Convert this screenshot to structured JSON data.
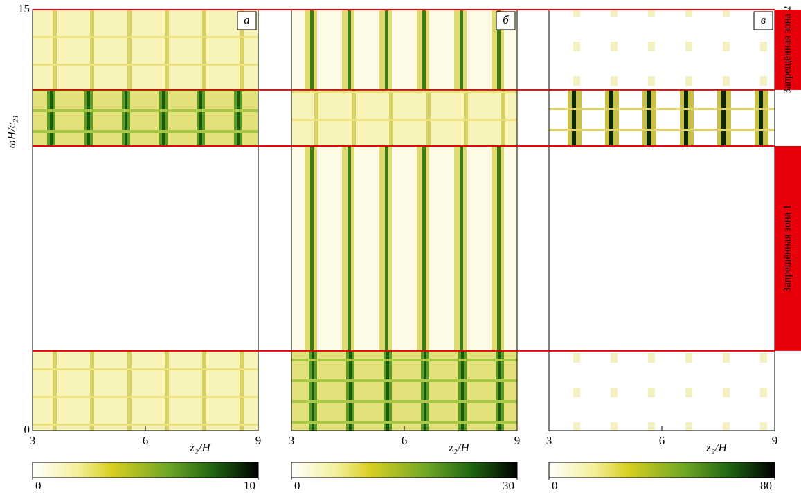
{
  "chart_data": [
    {
      "type": "heatmap",
      "panel_label": "а",
      "xlabel": "z₂/H",
      "ylabel": "ωH/c₂₁",
      "xlim": [
        3,
        9
      ],
      "xticks": [
        3,
        6,
        9
      ],
      "ylim": [
        0,
        15
      ],
      "yticks": [
        0,
        15
      ],
      "colorbar": {
        "lim": [
          0,
          10
        ],
        "ticks": [
          0,
          10
        ]
      }
    },
    {
      "type": "heatmap",
      "panel_label": "б",
      "xlabel": "z₂/H",
      "xlim": [
        3,
        9
      ],
      "xticks": [
        3,
        6,
        9
      ],
      "ylim": [
        0,
        15
      ],
      "colorbar": {
        "lim": [
          0,
          30
        ],
        "ticks": [
          0,
          30
        ]
      }
    },
    {
      "type": "heatmap",
      "panel_label": "в",
      "xlabel": "z₂/H",
      "xlim": [
        3,
        9
      ],
      "xticks": [
        3,
        6,
        9
      ],
      "ylim": [
        0,
        15
      ],
      "colorbar": {
        "lim": [
          0,
          80
        ],
        "ticks": [
          0,
          80
        ]
      }
    }
  ],
  "forbidden_zones": [
    {
      "label": "Запрещённая зона 2",
      "ylim": [
        12.14,
        15
      ],
      "color": "#e8000b"
    },
    {
      "label": "Запрещённая зона 1",
      "ylim": [
        2.84,
        10.14
      ],
      "color": "#e8000b"
    }
  ]
}
